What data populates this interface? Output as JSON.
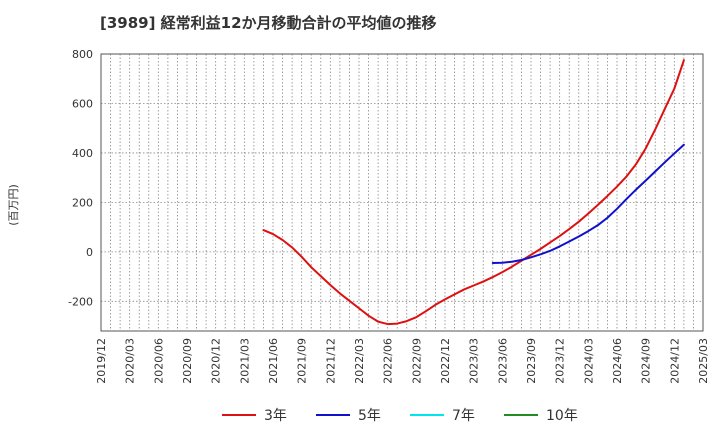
{
  "chart_data": {
    "type": "line",
    "title": "[3989]  経常利益12か月移動合計の平均値の推移",
    "ylabel": "(百万円)",
    "xlabel": "",
    "ylim": [
      -320,
      800
    ],
    "yticks": [
      800,
      600,
      400,
      200,
      0,
      -200
    ],
    "x_categories": [
      "2019/12",
      "2020/03",
      "2020/06",
      "2020/09",
      "2020/12",
      "2021/03",
      "2021/06",
      "2021/09",
      "2021/12",
      "2022/03",
      "2022/06",
      "2022/09",
      "2022/12",
      "2023/03",
      "2023/06",
      "2023/09",
      "2023/12",
      "2024/03",
      "2024/06",
      "2024/09",
      "2024/12",
      "2025/03"
    ],
    "grid": true,
    "legend_position": "bottom",
    "series": [
      {
        "name": "3年",
        "color": "#dd1111",
        "points": [
          [
            "2021/05",
            88
          ],
          [
            "2021/06",
            72
          ],
          [
            "2021/07",
            48
          ],
          [
            "2021/08",
            18
          ],
          [
            "2021/09",
            -20
          ],
          [
            "2021/10",
            -62
          ],
          [
            "2021/11",
            -98
          ],
          [
            "2021/12",
            -134
          ],
          [
            "2022/01",
            -168
          ],
          [
            "2022/02",
            -198
          ],
          [
            "2022/03",
            -228
          ],
          [
            "2022/04",
            -258
          ],
          [
            "2022/05",
            -282
          ],
          [
            "2022/06",
            -292
          ],
          [
            "2022/07",
            -290
          ],
          [
            "2022/08",
            -280
          ],
          [
            "2022/09",
            -264
          ],
          [
            "2022/10",
            -240
          ],
          [
            "2022/11",
            -214
          ],
          [
            "2022/12",
            -192
          ],
          [
            "2023/01",
            -172
          ],
          [
            "2023/02",
            -152
          ],
          [
            "2023/03",
            -136
          ],
          [
            "2023/04",
            -120
          ],
          [
            "2023/05",
            -102
          ],
          [
            "2023/06",
            -82
          ],
          [
            "2023/07",
            -60
          ],
          [
            "2023/08",
            -36
          ],
          [
            "2023/09",
            -12
          ],
          [
            "2023/10",
            12
          ],
          [
            "2023/11",
            38
          ],
          [
            "2023/12",
            64
          ],
          [
            "2024/01",
            92
          ],
          [
            "2024/02",
            122
          ],
          [
            "2024/03",
            155
          ],
          [
            "2024/04",
            190
          ],
          [
            "2024/05",
            226
          ],
          [
            "2024/06",
            264
          ],
          [
            "2024/07",
            305
          ],
          [
            "2024/08",
            355
          ],
          [
            "2024/09",
            418
          ],
          [
            "2024/10",
            495
          ],
          [
            "2024/11",
            578
          ],
          [
            "2024/12",
            660
          ],
          [
            "2025/01",
            775
          ]
        ]
      },
      {
        "name": "5年",
        "color": "#1111cc",
        "points": [
          [
            "2023/05",
            -45
          ],
          [
            "2023/06",
            -44
          ],
          [
            "2023/07",
            -40
          ],
          [
            "2023/08",
            -33
          ],
          [
            "2023/09",
            -22
          ],
          [
            "2023/10",
            -10
          ],
          [
            "2023/11",
            4
          ],
          [
            "2023/12",
            22
          ],
          [
            "2024/01",
            42
          ],
          [
            "2024/02",
            62
          ],
          [
            "2024/03",
            84
          ],
          [
            "2024/04",
            108
          ],
          [
            "2024/05",
            138
          ],
          [
            "2024/06",
            174
          ],
          [
            "2024/07",
            214
          ],
          [
            "2024/08",
            252
          ],
          [
            "2024/09",
            288
          ],
          [
            "2024/10",
            325
          ],
          [
            "2024/11",
            362
          ],
          [
            "2024/12",
            398
          ],
          [
            "2025/01",
            433
          ]
        ]
      },
      {
        "name": "7年",
        "color": "#00e5ee",
        "points": []
      },
      {
        "name": "10年",
        "color": "#228b22",
        "points": []
      }
    ]
  }
}
